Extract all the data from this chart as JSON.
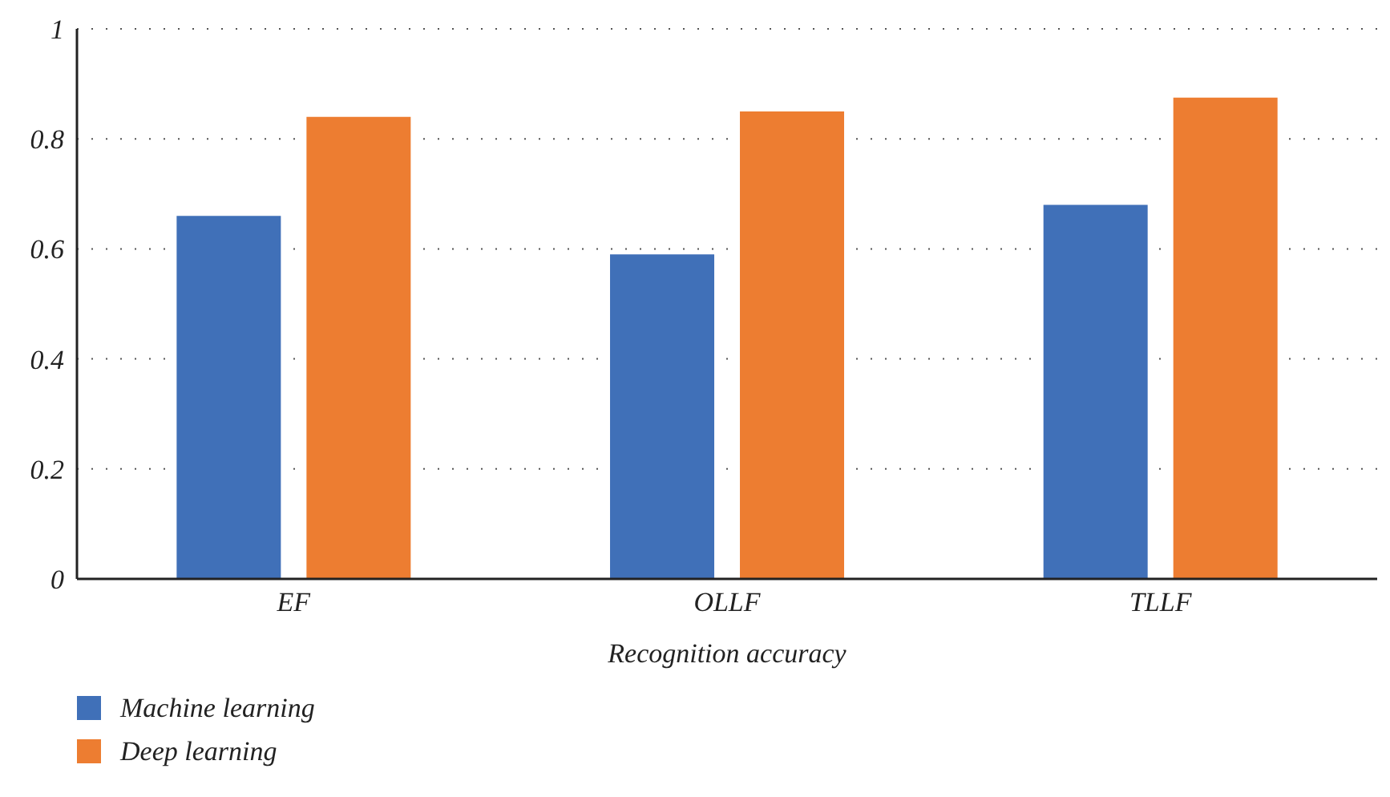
{
  "chart_data": {
    "type": "bar",
    "xlabel": "Recognition accuracy",
    "categories": [
      "EF",
      "OLLF",
      "TLLF"
    ],
    "series": [
      {
        "name": "Machine learning",
        "color": "#4070b8",
        "values": [
          0.66,
          0.59,
          0.68
        ]
      },
      {
        "name": "Deep learning",
        "color": "#ed7d31",
        "values": [
          0.84,
          0.85,
          0.875
        ]
      }
    ],
    "ylim": [
      0,
      1
    ],
    "yticks": [
      0,
      0.2,
      0.4,
      0.6,
      0.8,
      1
    ],
    "grid": "y",
    "legend": "bottom left"
  }
}
